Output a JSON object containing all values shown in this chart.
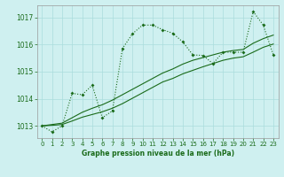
{
  "title": "Graphe pression niveau de la mer (hPa)",
  "bg_color": "#cff0f0",
  "grid_color": "#aadddd",
  "line_color": "#1a6b1a",
  "x_ticks": [
    0,
    1,
    2,
    3,
    4,
    5,
    6,
    7,
    8,
    9,
    10,
    11,
    12,
    13,
    14,
    15,
    16,
    17,
    18,
    19,
    20,
    21,
    22,
    23
  ],
  "y_ticks": [
    1013,
    1014,
    1015,
    1016,
    1017
  ],
  "ylim": [
    1012.55,
    1017.45
  ],
  "xlim": [
    -0.5,
    23.5
  ],
  "series1": [
    1013.0,
    1012.78,
    1013.0,
    1014.2,
    1014.15,
    1014.5,
    1013.3,
    1013.55,
    1015.85,
    1016.4,
    1016.72,
    1016.72,
    1016.55,
    1016.42,
    1016.1,
    1015.62,
    1015.6,
    1015.3,
    1015.72,
    1015.72,
    1015.72,
    1017.22,
    1016.72,
    1015.62
  ],
  "series2": [
    1013.0,
    1013.05,
    1013.1,
    1013.3,
    1013.5,
    1013.65,
    1013.78,
    1013.95,
    1014.15,
    1014.35,
    1014.55,
    1014.75,
    1014.95,
    1015.1,
    1015.28,
    1015.42,
    1015.52,
    1015.62,
    1015.72,
    1015.78,
    1015.82,
    1016.05,
    1016.22,
    1016.35
  ],
  "series3": [
    1013.0,
    1013.02,
    1013.05,
    1013.18,
    1013.32,
    1013.42,
    1013.52,
    1013.65,
    1013.82,
    1014.02,
    1014.22,
    1014.42,
    1014.62,
    1014.75,
    1014.92,
    1015.05,
    1015.18,
    1015.3,
    1015.42,
    1015.5,
    1015.55,
    1015.72,
    1015.9,
    1016.02
  ]
}
